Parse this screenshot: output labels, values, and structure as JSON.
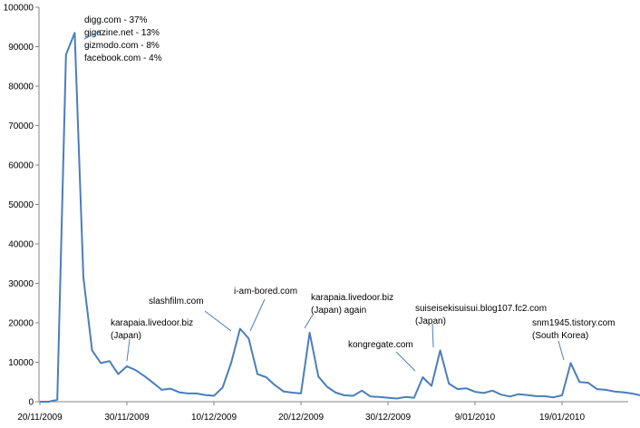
{
  "chart_data": {
    "type": "line",
    "title": "",
    "xlabel": "",
    "ylabel": "",
    "ylim": [
      0,
      100000
    ],
    "yticks": [
      0,
      10000,
      20000,
      30000,
      40000,
      50000,
      60000,
      70000,
      80000,
      90000,
      100000
    ],
    "xticks": [
      "20/11/2009",
      "30/11/2009",
      "10/12/2009",
      "20/12/2009",
      "30/12/2009",
      "9/01/2010",
      "19/01/2010"
    ],
    "grid": false,
    "legend": "none",
    "colors": {
      "line": "#4a7ebb",
      "axis": "#868686",
      "leader": "#4a7ebb"
    },
    "series": [
      {
        "x": [
          "20/11/2009",
          "21/11/2009",
          "22/11/2009",
          "23/11/2009",
          "24/11/2009",
          "25/11/2009",
          "26/11/2009",
          "27/11/2009",
          "28/11/2009",
          "29/11/2009",
          "30/11/2009",
          "1/12/2009",
          "2/12/2009",
          "3/12/2009",
          "4/12/2009",
          "5/12/2009",
          "6/12/2009",
          "7/12/2009",
          "8/12/2009",
          "9/12/2009",
          "10/12/2009",
          "11/12/2009",
          "12/12/2009",
          "13/12/2009",
          "14/12/2009",
          "15/12/2009",
          "16/12/2009",
          "17/12/2009",
          "18/12/2009",
          "19/12/2009",
          "20/12/2009",
          "21/12/2009",
          "22/12/2009",
          "23/12/2009",
          "24/12/2009",
          "25/12/2009",
          "26/12/2009",
          "27/12/2009",
          "28/12/2009",
          "29/12/2009",
          "30/12/2009",
          "31/12/2009",
          "1/01/2010",
          "2/01/2010",
          "3/01/2010",
          "4/01/2010",
          "5/01/2010",
          "6/01/2010",
          "7/01/2010",
          "8/01/2010",
          "9/01/2010",
          "10/01/2010",
          "11/01/2010",
          "12/01/2010",
          "13/01/2010",
          "14/01/2010",
          "15/01/2010",
          "16/01/2010",
          "17/01/2010",
          "18/01/2010",
          "19/01/2010",
          "20/01/2010",
          "21/01/2010",
          "22/01/2010",
          "23/01/2010",
          "24/01/2010",
          "25/01/2010",
          "26/01/2010",
          "27/01/2010",
          "28/01/2010"
        ],
        "values": [
          0,
          0,
          500,
          88000,
          93500,
          31500,
          13000,
          9800,
          10300,
          7000,
          9000,
          8000,
          6500,
          4800,
          3000,
          3300,
          2400,
          2100,
          2100,
          1700,
          1500,
          3600,
          10000,
          18500,
          16000,
          7000,
          6200,
          4200,
          2600,
          2300,
          2100,
          17500,
          6400,
          3800,
          2300,
          1600,
          1500,
          2800,
          1300,
          1200,
          1000,
          800,
          1200,
          1000,
          6200,
          4000,
          13000,
          4600,
          3200,
          3400,
          2500,
          2200,
          2800,
          1800,
          1300,
          1900,
          1700,
          1400,
          1400,
          1100,
          1600,
          9800,
          5000,
          4800,
          3200,
          3000,
          2600,
          2400,
          2100,
          1600
        ]
      }
    ],
    "annotations": [
      {
        "lines": [
          "digg.com - 37%",
          "gigazine.net - 13%",
          "gizmodo.com - 8%",
          "facebook.com - 4%"
        ],
        "point_index": 4
      },
      {
        "lines": [
          "karapaia.livedoor.biz",
          "(Japan)"
        ],
        "point_index": 10
      },
      {
        "lines": [
          "slashfilm.com"
        ],
        "point_index": 23
      },
      {
        "lines": [
          "i-am-bored.com"
        ],
        "point_index": 24
      },
      {
        "lines": [
          "karapaia.livedoor.biz",
          "(Japan) again"
        ],
        "point_index": 31
      },
      {
        "lines": [
          "kongregate.com"
        ],
        "point_index": 44
      },
      {
        "lines": [
          "suiseisekisuisui.blog107.fc2.com",
          "(Japan)"
        ],
        "point_index": 46
      },
      {
        "lines": [
          "snm1945.tistory.com",
          "(South Korea)"
        ],
        "point_index": 61
      }
    ]
  }
}
